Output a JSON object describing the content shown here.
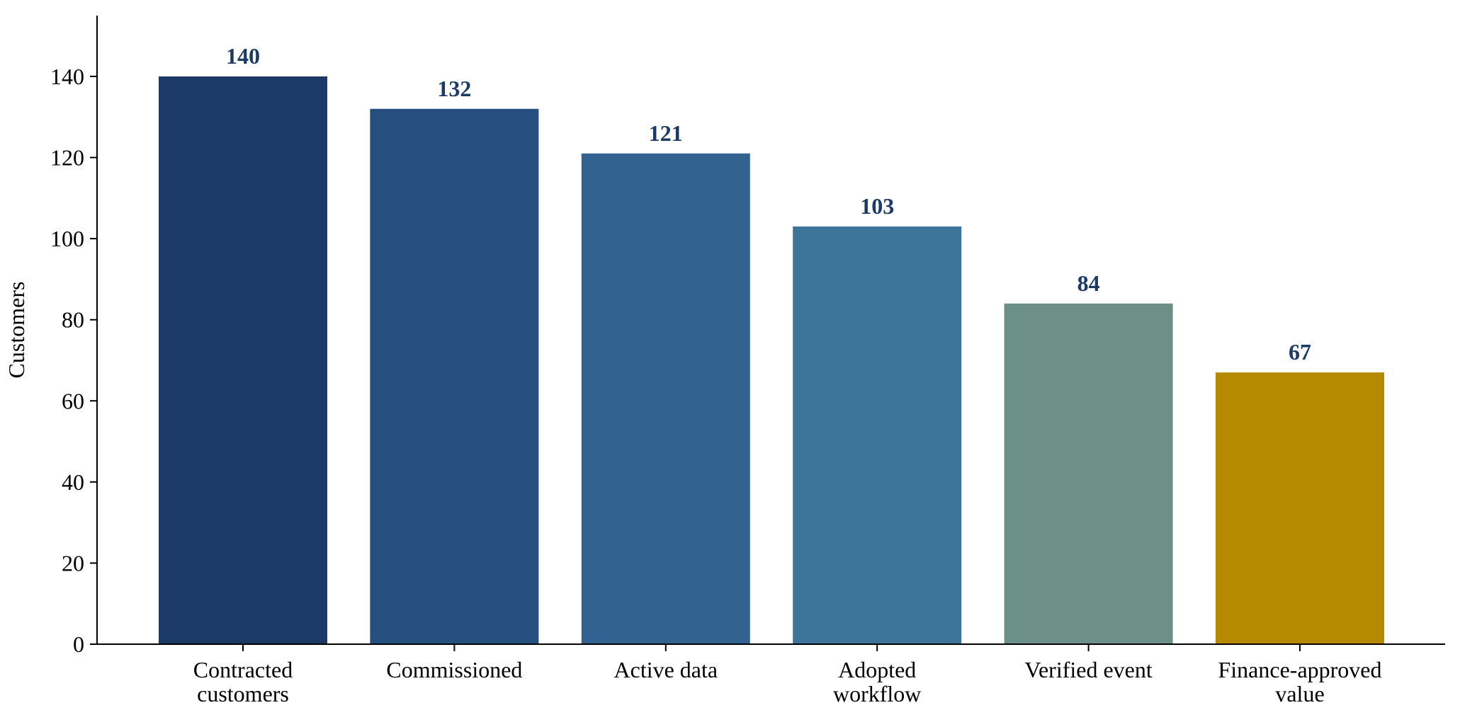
{
  "chart_data": {
    "type": "bar",
    "title": "",
    "xlabel": "",
    "ylabel": "Customers",
    "ylim": [
      0,
      155
    ],
    "yticks": [
      0,
      20,
      40,
      60,
      80,
      100,
      120,
      140
    ],
    "grid": false,
    "legend": "none",
    "categories": [
      [
        "Contracted",
        "customers"
      ],
      [
        "Commissioned"
      ],
      [
        "Active data"
      ],
      [
        "Adopted",
        "workflow"
      ],
      [
        "Verified event"
      ],
      [
        "Finance-approved",
        "value"
      ]
    ],
    "values": [
      140,
      132,
      121,
      103,
      84,
      67
    ],
    "data_labels": [
      "140",
      "132",
      "121",
      "103",
      "84",
      "67"
    ],
    "colors": [
      "#1b3a66",
      "#244f7e",
      "#32628f",
      "#3d7499",
      "#6c8f88",
      "#b58a00"
    ],
    "label_color": "#1b3a66"
  }
}
